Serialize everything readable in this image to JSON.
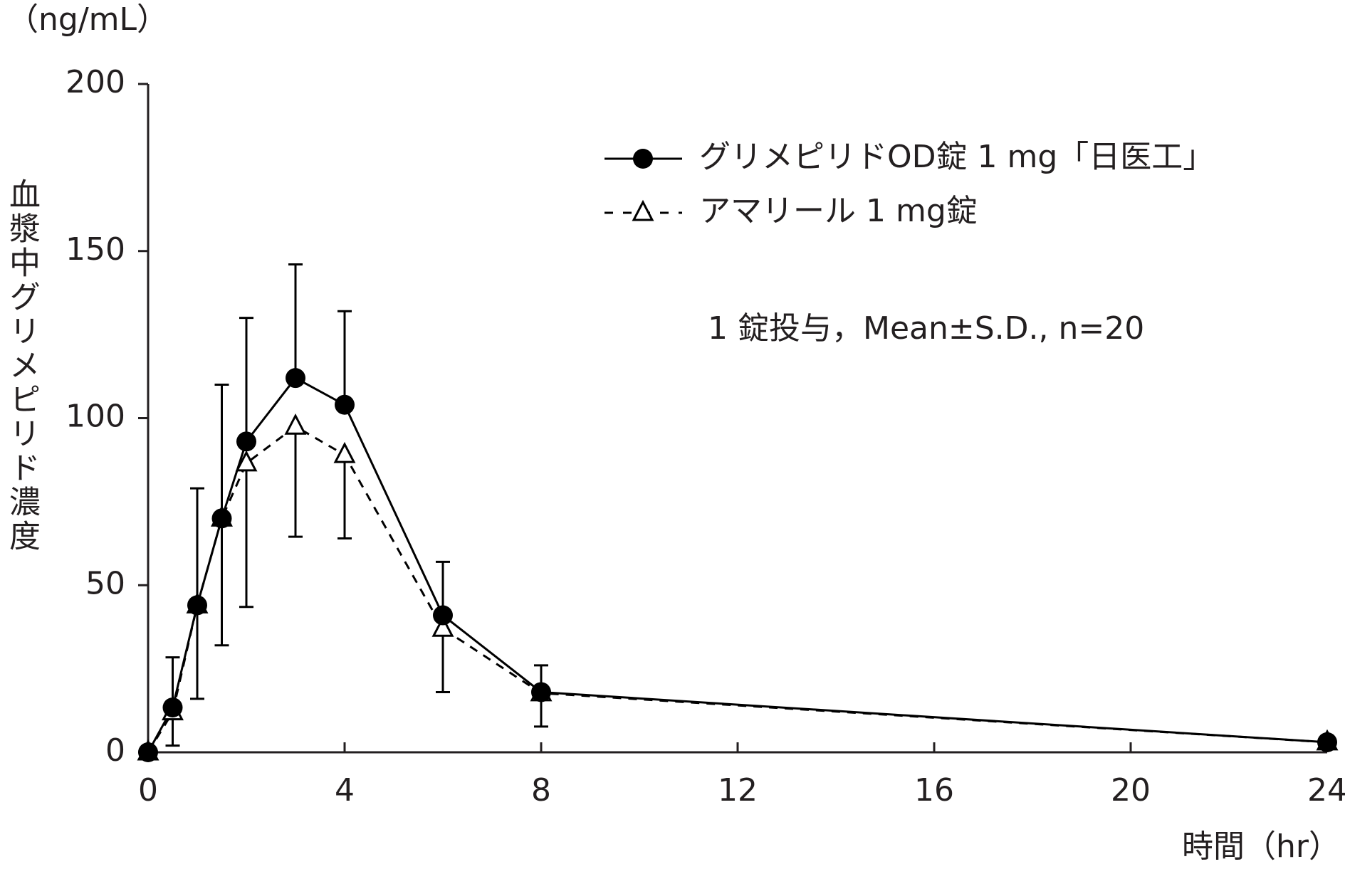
{
  "chart_data": {
    "type": "line",
    "y_unit": "（ng/mL）",
    "y_label": "血漿中グリメピリド濃度",
    "x_label": "時間（hr）",
    "annotation": "1 錠投与，Mean±S.D., n=20",
    "x": [
      0,
      0.5,
      1,
      1.5,
      2,
      3,
      4,
      6,
      8,
      24
    ],
    "series": [
      {
        "name": "グリメピリドOD錠 1 mg「日医工」",
        "color": "#000000",
        "marker": "circle",
        "line": "solid",
        "error_direction": "up",
        "values": [
          0,
          13.4,
          44,
          70,
          93,
          112,
          104,
          41,
          18,
          3
        ],
        "errors": [
          null,
          15,
          35,
          40,
          37,
          34,
          28,
          16,
          8,
          null
        ]
      },
      {
        "name": "アマリール 1 mg錠",
        "color": "#000000",
        "marker": "triangle",
        "line": "dashed",
        "error_direction": "down",
        "values": [
          0,
          12,
          44,
          70,
          86.5,
          97.5,
          89,
          37,
          17.7,
          3
        ],
        "errors": [
          null,
          10,
          28,
          38,
          43,
          33,
          25,
          19,
          10,
          null
        ]
      }
    ],
    "xlim": [
      0,
      24
    ],
    "xticks": [
      0,
      4,
      8,
      12,
      16,
      20,
      24
    ],
    "ylim": [
      0,
      200
    ],
    "yticks": [
      0,
      50,
      100,
      150,
      200
    ],
    "grid": false
  }
}
